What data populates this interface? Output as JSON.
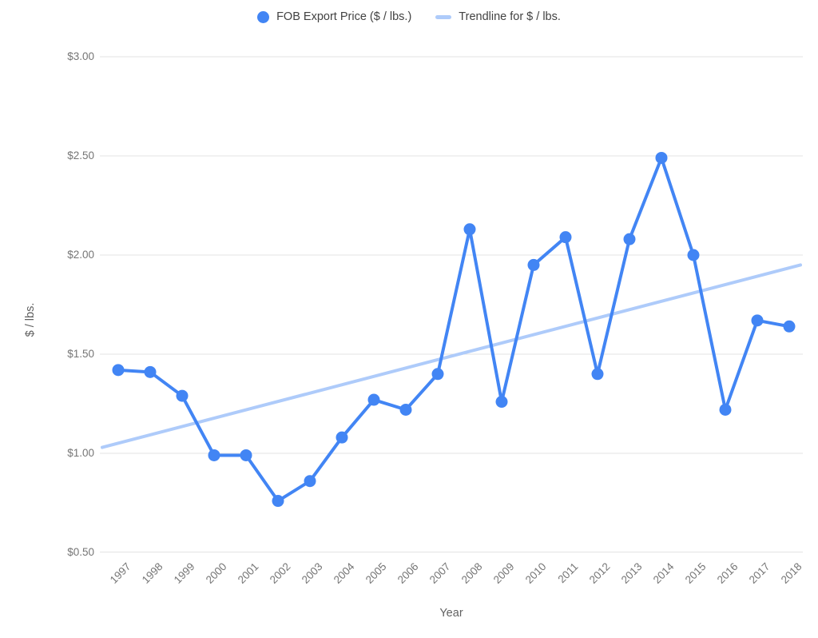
{
  "legend": {
    "series_label": "FOB Export Price ($ / lbs.)",
    "trendline_label": "Trendline for $ / lbs."
  },
  "axes": {
    "x_title": "Year",
    "y_title": "$ / lbs.",
    "y_tick_labels": [
      "$3.00",
      "$2.50",
      "$2.00",
      "$1.50",
      "$1.00",
      "$0.50"
    ]
  },
  "chart_data": {
    "type": "line",
    "title": "",
    "x": [
      1997,
      1998,
      1999,
      2000,
      2001,
      2002,
      2003,
      2004,
      2005,
      2006,
      2007,
      2008,
      2009,
      2010,
      2011,
      2012,
      2013,
      2014,
      2015,
      2016,
      2017,
      2018
    ],
    "series": [
      {
        "name": "FOB Export Price ($ / lbs.)",
        "values": [
          1.42,
          1.41,
          1.29,
          0.99,
          0.99,
          0.76,
          0.86,
          1.08,
          1.27,
          1.22,
          1.4,
          2.13,
          1.26,
          1.95,
          2.09,
          1.4,
          2.08,
          2.49,
          2.0,
          1.22,
          1.67,
          1.64
        ]
      }
    ],
    "trendline": {
      "name": "Trendline for $ / lbs.",
      "start_value": 1.03,
      "end_value": 1.95
    },
    "xlabel": "Year",
    "ylabel": "$ / lbs.",
    "ylim": [
      0.5,
      3.0
    ],
    "y_tick_step": 0.5,
    "grid": true,
    "legend_position": "top",
    "marker": "circle",
    "colors": {
      "series": "#4285F4",
      "trendline": "#AECBFA",
      "gridline": "#E3E3E3",
      "tick_text": "#757575",
      "axis_title_text": "#616161",
      "legend_text": "#424242",
      "background": "#FFFFFF"
    }
  }
}
